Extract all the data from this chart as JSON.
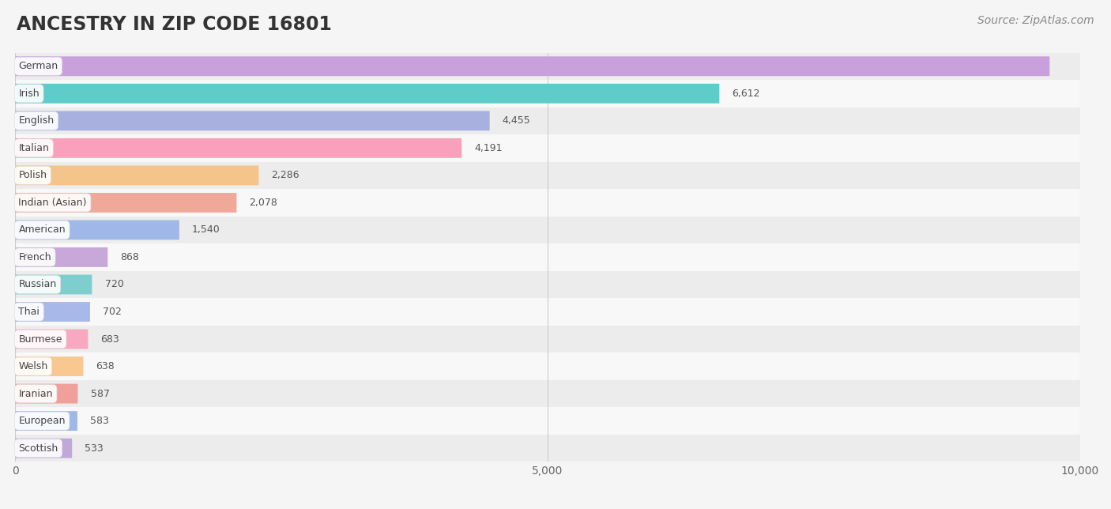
{
  "title": "ANCESTRY IN ZIP CODE 16801",
  "source": "Source: ZipAtlas.com",
  "categories": [
    "German",
    "Irish",
    "English",
    "Italian",
    "Polish",
    "Indian (Asian)",
    "American",
    "French",
    "Russian",
    "Thai",
    "Burmese",
    "Welsh",
    "Iranian",
    "European",
    "Scottish"
  ],
  "values": [
    9714,
    6612,
    4455,
    4191,
    2286,
    2078,
    1540,
    868,
    720,
    702,
    683,
    638,
    587,
    583,
    533
  ],
  "bar_colors": [
    "#c9a0dc",
    "#5eccc8",
    "#a8b0e0",
    "#f8a0bc",
    "#f5c48a",
    "#f0a898",
    "#a0b8e8",
    "#c8a8d8",
    "#7ecece",
    "#a8b8e8",
    "#f8a8c0",
    "#f8c890",
    "#f0a098",
    "#a0b8e8",
    "#c0a8d8"
  ],
  "xlim": [
    0,
    10000
  ],
  "xticks": [
    0,
    5000,
    10000
  ],
  "xtick_labels": [
    "0",
    "5,000",
    "10,000"
  ],
  "background_color": "#f5f5f5",
  "row_bg_light": "#f0f0f0",
  "row_bg_dark": "#e8e8e8",
  "title_fontsize": 17,
  "source_fontsize": 10,
  "bar_height": 0.72
}
